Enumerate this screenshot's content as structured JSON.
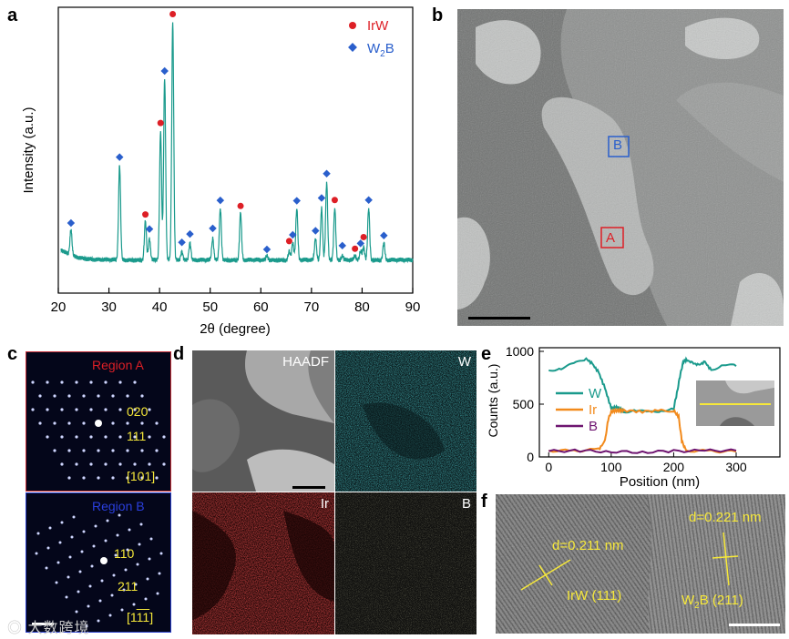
{
  "panels": {
    "a": "a",
    "b": "b",
    "c": "c",
    "d": "d",
    "e": "e",
    "f": "f"
  },
  "colors": {
    "irw": "#dd1f26",
    "w2b": "#2a5fcc",
    "xrd": "#1a9a8c",
    "yellow": "#f6e83a"
  },
  "chart_data": [
    {
      "type": "line",
      "panel": "a",
      "title": "",
      "xlabel": "2θ (degree)",
      "ylabel": "Intensity (a.u.)",
      "xlim": [
        20,
        90
      ],
      "xticks": [
        20,
        30,
        40,
        50,
        60,
        70,
        80,
        90
      ],
      "baseline": 3,
      "noise": 0.6,
      "peaks": [
        {
          "x": 22.5,
          "h": 6
        },
        {
          "x": 32.1,
          "h": 22
        },
        {
          "x": 37.2,
          "h": 9
        },
        {
          "x": 38.0,
          "h": 5
        },
        {
          "x": 40.2,
          "h": 30
        },
        {
          "x": 41.0,
          "h": 42
        },
        {
          "x": 42.6,
          "h": 55
        },
        {
          "x": 44.4,
          "h": 2
        },
        {
          "x": 46.0,
          "h": 4
        },
        {
          "x": 50.5,
          "h": 5
        },
        {
          "x": 52.0,
          "h": 12
        },
        {
          "x": 56.0,
          "h": 11
        },
        {
          "x": 61.2,
          "h": 1
        },
        {
          "x": 65.6,
          "h": 2
        },
        {
          "x": 66.3,
          "h": 4
        },
        {
          "x": 67.1,
          "h": 12
        },
        {
          "x": 70.8,
          "h": 5
        },
        {
          "x": 72.0,
          "h": 12
        },
        {
          "x": 73.0,
          "h": 18
        },
        {
          "x": 74.6,
          "h": 12
        },
        {
          "x": 76.1,
          "h": 1
        },
        {
          "x": 78.6,
          "h": 1
        },
        {
          "x": 79.7,
          "h": 2
        },
        {
          "x": 80.3,
          "h": 3
        },
        {
          "x": 81.3,
          "h": 12
        },
        {
          "x": 84.3,
          "h": 4
        }
      ],
      "markers": {
        "IrW": [
          37.2,
          40.2,
          42.6,
          56.0,
          65.6,
          74.6,
          78.6,
          80.3
        ],
        "W2B": [
          22.5,
          32.1,
          38.0,
          41.0,
          44.4,
          46.0,
          50.5,
          52.0,
          61.2,
          66.3,
          67.1,
          70.8,
          72.0,
          73.0,
          76.1,
          79.7,
          81.3,
          84.3
        ]
      },
      "legend": [
        {
          "name": "IrW",
          "text": "IrW",
          "marker": "circle",
          "color": "#dd1f26"
        },
        {
          "name": "W2B",
          "text": "W",
          "sub": "2",
          "suffix": "B",
          "marker": "diamond",
          "color": "#2a5fcc"
        }
      ],
      "legend_position": "top-right"
    },
    {
      "type": "line",
      "panel": "e",
      "xlabel": "Position (nm)",
      "ylabel": "Counts (a.u.)",
      "xlim": [
        -15,
        370
      ],
      "ylim": [
        0,
        1000
      ],
      "xticks": [
        0,
        100,
        200,
        300
      ],
      "yticks": [
        0,
        500,
        1000
      ],
      "series": [
        {
          "name": "W",
          "color": "#1a9a8c",
          "x": [
            0,
            20,
            40,
            60,
            70,
            80,
            90,
            100,
            110,
            120,
            140,
            160,
            180,
            200,
            205,
            210,
            215,
            220,
            230,
            240,
            250,
            260,
            280,
            300
          ],
          "y": [
            820,
            840,
            880,
            930,
            880,
            800,
            650,
            460,
            470,
            430,
            440,
            420,
            440,
            460,
            600,
            760,
            900,
            920,
            890,
            870,
            900,
            820,
            880,
            860
          ]
        },
        {
          "name": "Ir",
          "color": "#f28a1c",
          "x": [
            0,
            40,
            80,
            90,
            95,
            100,
            110,
            120,
            150,
            180,
            200,
            208,
            213,
            220,
            260,
            300
          ],
          "y": [
            60,
            58,
            70,
            150,
            350,
            430,
            440,
            440,
            430,
            440,
            440,
            380,
            150,
            60,
            55,
            50
          ]
        },
        {
          "name": "B",
          "color": "#6e1470",
          "x": [
            0,
            50,
            100,
            150,
            200,
            250,
            300
          ],
          "y": [
            55,
            60,
            50,
            45,
            55,
            60,
            60
          ]
        }
      ],
      "legend_position": "left"
    }
  ],
  "panel_b": {
    "box_a": "A",
    "box_b": "B"
  },
  "panel_c": {
    "region_a": "Region A",
    "plane_1": "020",
    "plane_2": "111",
    "zone_a": "[101]",
    "zone_a_overline": "1",
    "region_b": "Region B",
    "plane_3": "110",
    "plane_4": "211",
    "zone_b": "[1",
    "zone_b_over": "11",
    "zone_b_end": "]"
  },
  "panel_d": {
    "haadf": "HAADF",
    "w": "W",
    "ir": "Ir",
    "b": "B"
  },
  "panel_f": {
    "d1": "d=0.211 nm",
    "label1": "IrW (111)",
    "d2": "d=0.221 nm",
    "label2_pre": "W",
    "label2_sub": "2",
    "label2_post": "B (211)"
  },
  "watermark": "大数跨境"
}
